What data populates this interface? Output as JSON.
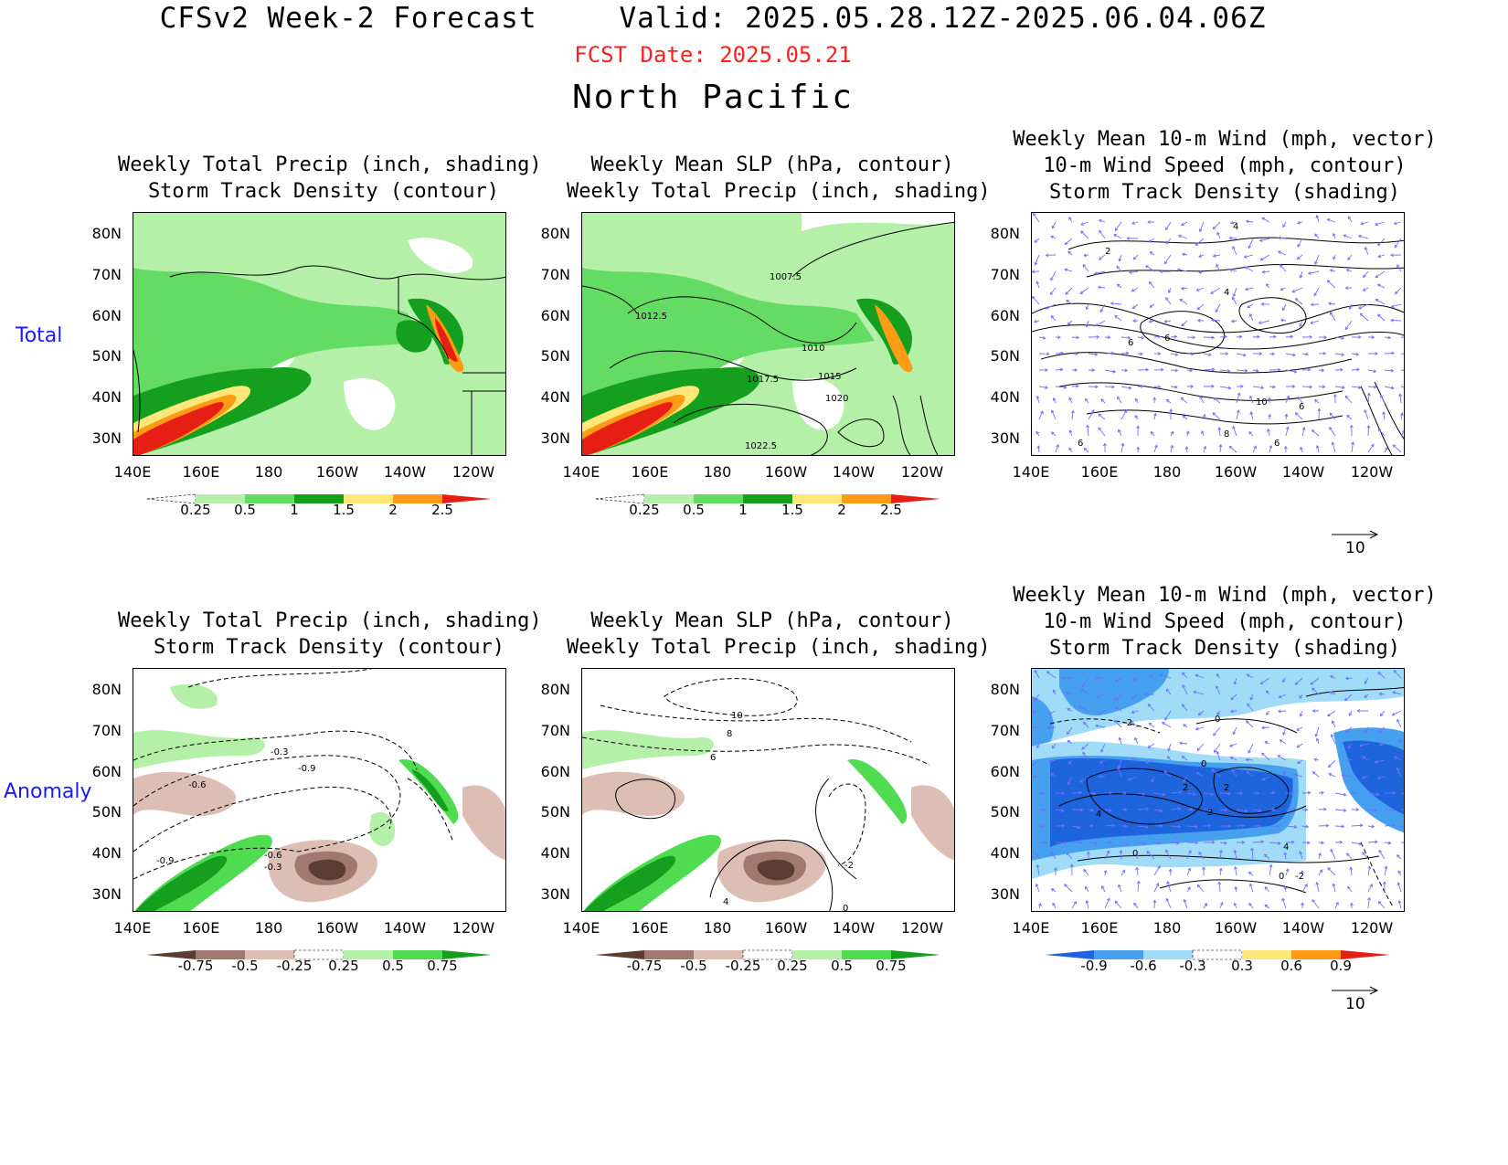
{
  "header": {
    "model_title": "CFSv2 Week-2 Forecast",
    "valid": "Valid: 2025.05.28.12Z-2025.06.04.06Z",
    "fcst_date": "FCST Date: 2025.05.21",
    "region": "North Pacific"
  },
  "rows": {
    "total": "Total",
    "anomaly": "Anomaly"
  },
  "panels": {
    "precip_storm": {
      "line1": "Weekly Total Precip (inch, shading)",
      "line2": "Storm Track Density (contour)"
    },
    "slp_precip": {
      "line1": "Weekly Mean SLP (hPa, contour)",
      "line2": "Weekly Total Precip (inch, shading)"
    },
    "wind": {
      "line1": "Weekly Mean 10-m Wind (mph, vector)",
      "line2": "10-m Wind Speed (mph, contour)",
      "line3": "Storm Track Density (shading)"
    }
  },
  "axes": {
    "lat_labels": [
      "80N",
      "70N",
      "60N",
      "50N",
      "40N",
      "30N"
    ],
    "lon_labels": [
      "140E",
      "160E",
      "180",
      "160W",
      "140W",
      "120W"
    ]
  },
  "colorbars": {
    "precip_total": {
      "labels": [
        "0.25",
        "0.5",
        "1",
        "1.5",
        "2",
        "2.5"
      ],
      "colors": [
        "#ffffff",
        "#b4f0a8",
        "#64dc64",
        "#14a01e",
        "#ffe678",
        "#ff9b14",
        "#e61e14"
      ]
    },
    "precip_anom": {
      "labels": [
        "-0.75",
        "-0.5",
        "-0.25",
        "0.25",
        "0.5",
        "0.75"
      ],
      "colors": [
        "#5a3c32",
        "#a07870",
        "#dcbeb4",
        "#ffffff",
        "#b4f0a8",
        "#50dc50",
        "#14a01e"
      ]
    },
    "storm_anom": {
      "labels": [
        "-0.9",
        "-0.6",
        "-0.3",
        "0.3",
        "0.6",
        "0.9"
      ],
      "colors": [
        "#1e64dc",
        "#46a0f0",
        "#a0dcf8",
        "#ffffff",
        "#ffe678",
        "#ff9b14",
        "#e61e14"
      ]
    }
  },
  "wind_reference": {
    "value": "10"
  },
  "contour_labels": {
    "slp_total": [
      "1007.5",
      "1012.5",
      "1010",
      "1015",
      "1017.5",
      "1020",
      "1022.5"
    ],
    "wind_total": [
      "4",
      "2",
      "4",
      "6",
      "6",
      "10",
      "6",
      "8",
      "6",
      "6"
    ],
    "storm_anom": [
      "-0.3",
      "-0.9",
      "-0.6",
      "-0.9",
      "-0.6",
      "-0.3"
    ],
    "slp_anom": [
      "10",
      "8",
      "6",
      "-2",
      "0",
      "4"
    ],
    "wind_anom": [
      "0",
      "-2",
      "0",
      "2",
      "2",
      "4",
      "2",
      "0",
      "0",
      "4",
      "-2"
    ]
  }
}
